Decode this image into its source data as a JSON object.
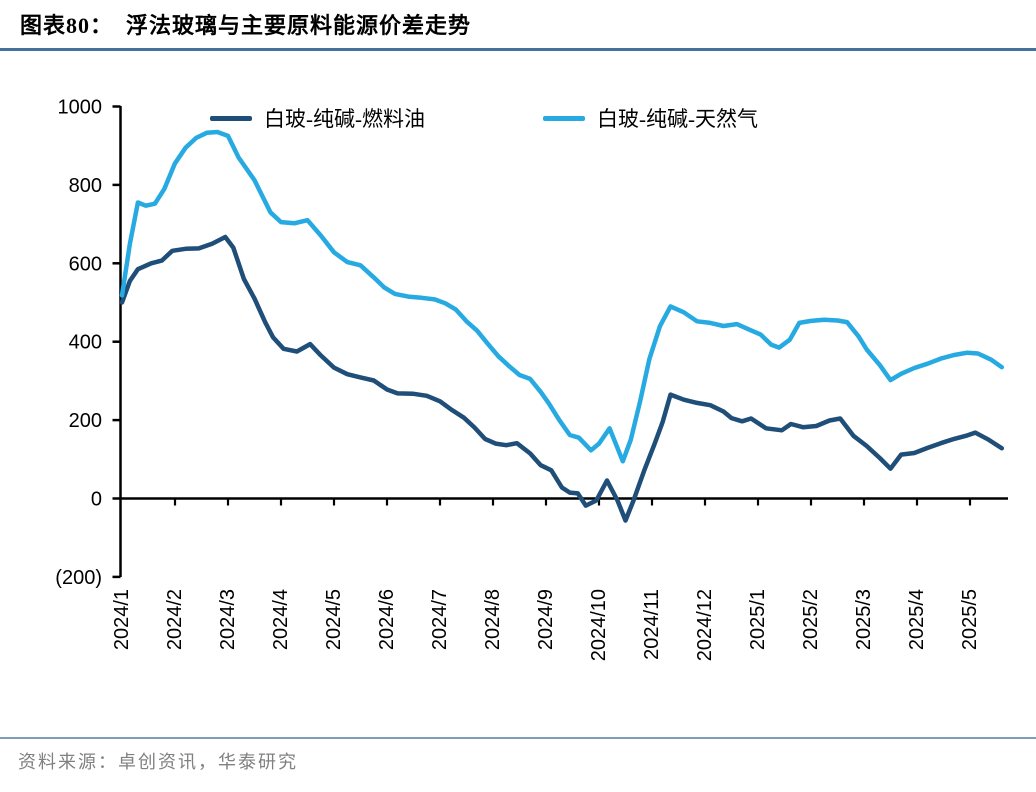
{
  "header": {
    "title": "图表80：  浮法玻璃与主要原料能源价差走势"
  },
  "footer": {
    "source": "资料来源：卓创资讯，华泰研究"
  },
  "colors": {
    "series_fuel_oil": "#1F4E79",
    "series_natural_gas": "#27AAE1",
    "title_underline": "#41719C",
    "footer_rule": "#7F9DB9",
    "axis": "#000000",
    "source_text": "#808080"
  },
  "chart_data": {
    "type": "line",
    "title": "浮法玻璃与主要原料能源价差走势",
    "xlabel": "",
    "ylabel": "",
    "ylim": [
      -200,
      1000
    ],
    "grid": false,
    "legend_position": "top",
    "y_ticks": [
      {
        "label": "1000",
        "value": 1000
      },
      {
        "label": "800",
        "value": 800
      },
      {
        "label": "600",
        "value": 600
      },
      {
        "label": "400",
        "value": 400
      },
      {
        "label": "200",
        "value": 200
      },
      {
        "label": "0",
        "value": 0
      },
      {
        "label": "(200)",
        "value": -200
      }
    ],
    "x_labels": [
      "2024/1",
      "2024/2",
      "2024/3",
      "2024/4",
      "2024/5",
      "2024/6",
      "2024/7",
      "2024/8",
      "2024/9",
      "2024/10",
      "2024/11",
      "2024/12",
      "2025/1",
      "2025/2",
      "2025/3",
      "2025/4",
      "2025/5"
    ],
    "x_unit": "months since 2024/1, weekly sampling",
    "series": [
      {
        "name": "白玻-纯碱-燃料油",
        "color": "#1F4E79",
        "points": [
          [
            0,
            500
          ],
          [
            0.15,
            555
          ],
          [
            0.3,
            585
          ],
          [
            0.55,
            600
          ],
          [
            0.75,
            607
          ],
          [
            0.95,
            632
          ],
          [
            1.2,
            637
          ],
          [
            1.45,
            638
          ],
          [
            1.7,
            650
          ],
          [
            1.95,
            667
          ],
          [
            2.1,
            640
          ],
          [
            2.3,
            560
          ],
          [
            2.5,
            510
          ],
          [
            2.7,
            450
          ],
          [
            2.85,
            411
          ],
          [
            3.05,
            382
          ],
          [
            3.3,
            375
          ],
          [
            3.55,
            394
          ],
          [
            3.75,
            365
          ],
          [
            4,
            334
          ],
          [
            4.25,
            317
          ],
          [
            4.5,
            309
          ],
          [
            4.75,
            301
          ],
          [
            5,
            278
          ],
          [
            5.2,
            268
          ],
          [
            5.5,
            267
          ],
          [
            5.75,
            262
          ],
          [
            6,
            248
          ],
          [
            6.2,
            228
          ],
          [
            6.45,
            206
          ],
          [
            6.65,
            181
          ],
          [
            6.85,
            152
          ],
          [
            7.05,
            140
          ],
          [
            7.25,
            136
          ],
          [
            7.45,
            141
          ],
          [
            7.7,
            115
          ],
          [
            7.9,
            85
          ],
          [
            8.1,
            72
          ],
          [
            8.3,
            28
          ],
          [
            8.45,
            15
          ],
          [
            8.6,
            13
          ],
          [
            8.75,
            -18
          ],
          [
            8.95,
            -5
          ],
          [
            9.15,
            46
          ],
          [
            9.35,
            -5
          ],
          [
            9.5,
            -56
          ],
          [
            9.65,
            -5
          ],
          [
            9.85,
            70
          ],
          [
            10.05,
            140
          ],
          [
            10.2,
            195
          ],
          [
            10.35,
            265
          ],
          [
            10.6,
            252
          ],
          [
            10.85,
            244
          ],
          [
            11.1,
            238
          ],
          [
            11.35,
            222
          ],
          [
            11.5,
            205
          ],
          [
            11.7,
            197
          ],
          [
            11.87,
            204
          ],
          [
            12.15,
            179
          ],
          [
            12.45,
            174
          ],
          [
            12.62,
            190
          ],
          [
            12.85,
            182
          ],
          [
            13.1,
            185
          ],
          [
            13.35,
            199
          ],
          [
            13.55,
            204
          ],
          [
            13.8,
            160
          ],
          [
            14.05,
            134
          ],
          [
            14.3,
            103
          ],
          [
            14.5,
            76
          ],
          [
            14.7,
            112
          ],
          [
            14.95,
            116
          ],
          [
            15.2,
            129
          ],
          [
            15.45,
            141
          ],
          [
            15.7,
            152
          ],
          [
            15.95,
            161
          ],
          [
            16.1,
            168
          ],
          [
            16.35,
            150
          ],
          [
            16.6,
            128
          ]
        ]
      },
      {
        "name": "白玻-纯碱-天然气",
        "color": "#27AAE1",
        "points": [
          [
            0,
            518
          ],
          [
            0.15,
            650
          ],
          [
            0.3,
            755
          ],
          [
            0.45,
            747
          ],
          [
            0.62,
            752
          ],
          [
            0.8,
            790
          ],
          [
            1,
            855
          ],
          [
            1.2,
            895
          ],
          [
            1.4,
            920
          ],
          [
            1.6,
            933
          ],
          [
            1.8,
            935
          ],
          [
            2,
            925
          ],
          [
            2.2,
            870
          ],
          [
            2.5,
            812
          ],
          [
            2.8,
            730
          ],
          [
            3,
            705
          ],
          [
            3.25,
            702
          ],
          [
            3.5,
            710
          ],
          [
            3.75,
            671
          ],
          [
            4,
            628
          ],
          [
            4.25,
            603
          ],
          [
            4.5,
            595
          ],
          [
            4.75,
            564
          ],
          [
            4.95,
            538
          ],
          [
            5.15,
            522
          ],
          [
            5.4,
            515
          ],
          [
            5.65,
            512
          ],
          [
            5.9,
            508
          ],
          [
            6.1,
            498
          ],
          [
            6.3,
            482
          ],
          [
            6.5,
            452
          ],
          [
            6.7,
            428
          ],
          [
            6.9,
            395
          ],
          [
            7.1,
            363
          ],
          [
            7.3,
            338
          ],
          [
            7.5,
            315
          ],
          [
            7.7,
            305
          ],
          [
            7.9,
            272
          ],
          [
            8.05,
            243
          ],
          [
            8.25,
            200
          ],
          [
            8.45,
            162
          ],
          [
            8.62,
            155
          ],
          [
            8.85,
            123
          ],
          [
            9,
            140
          ],
          [
            9.2,
            179
          ],
          [
            9.45,
            95
          ],
          [
            9.6,
            150
          ],
          [
            9.78,
            250
          ],
          [
            9.95,
            355
          ],
          [
            10.15,
            440
          ],
          [
            10.35,
            490
          ],
          [
            10.6,
            475
          ],
          [
            10.85,
            452
          ],
          [
            11.1,
            448
          ],
          [
            11.35,
            440
          ],
          [
            11.6,
            445
          ],
          [
            11.85,
            430
          ],
          [
            12.05,
            418
          ],
          [
            12.25,
            392
          ],
          [
            12.4,
            385
          ],
          [
            12.6,
            405
          ],
          [
            12.78,
            448
          ],
          [
            13,
            453
          ],
          [
            13.25,
            456
          ],
          [
            13.5,
            454
          ],
          [
            13.68,
            450
          ],
          [
            13.9,
            413
          ],
          [
            14.05,
            380
          ],
          [
            14.3,
            340
          ],
          [
            14.5,
            302
          ],
          [
            14.7,
            318
          ],
          [
            14.95,
            333
          ],
          [
            15.2,
            344
          ],
          [
            15.45,
            357
          ],
          [
            15.7,
            366
          ],
          [
            15.95,
            372
          ],
          [
            16.15,
            370
          ],
          [
            16.4,
            354
          ],
          [
            16.6,
            335
          ]
        ]
      }
    ]
  }
}
